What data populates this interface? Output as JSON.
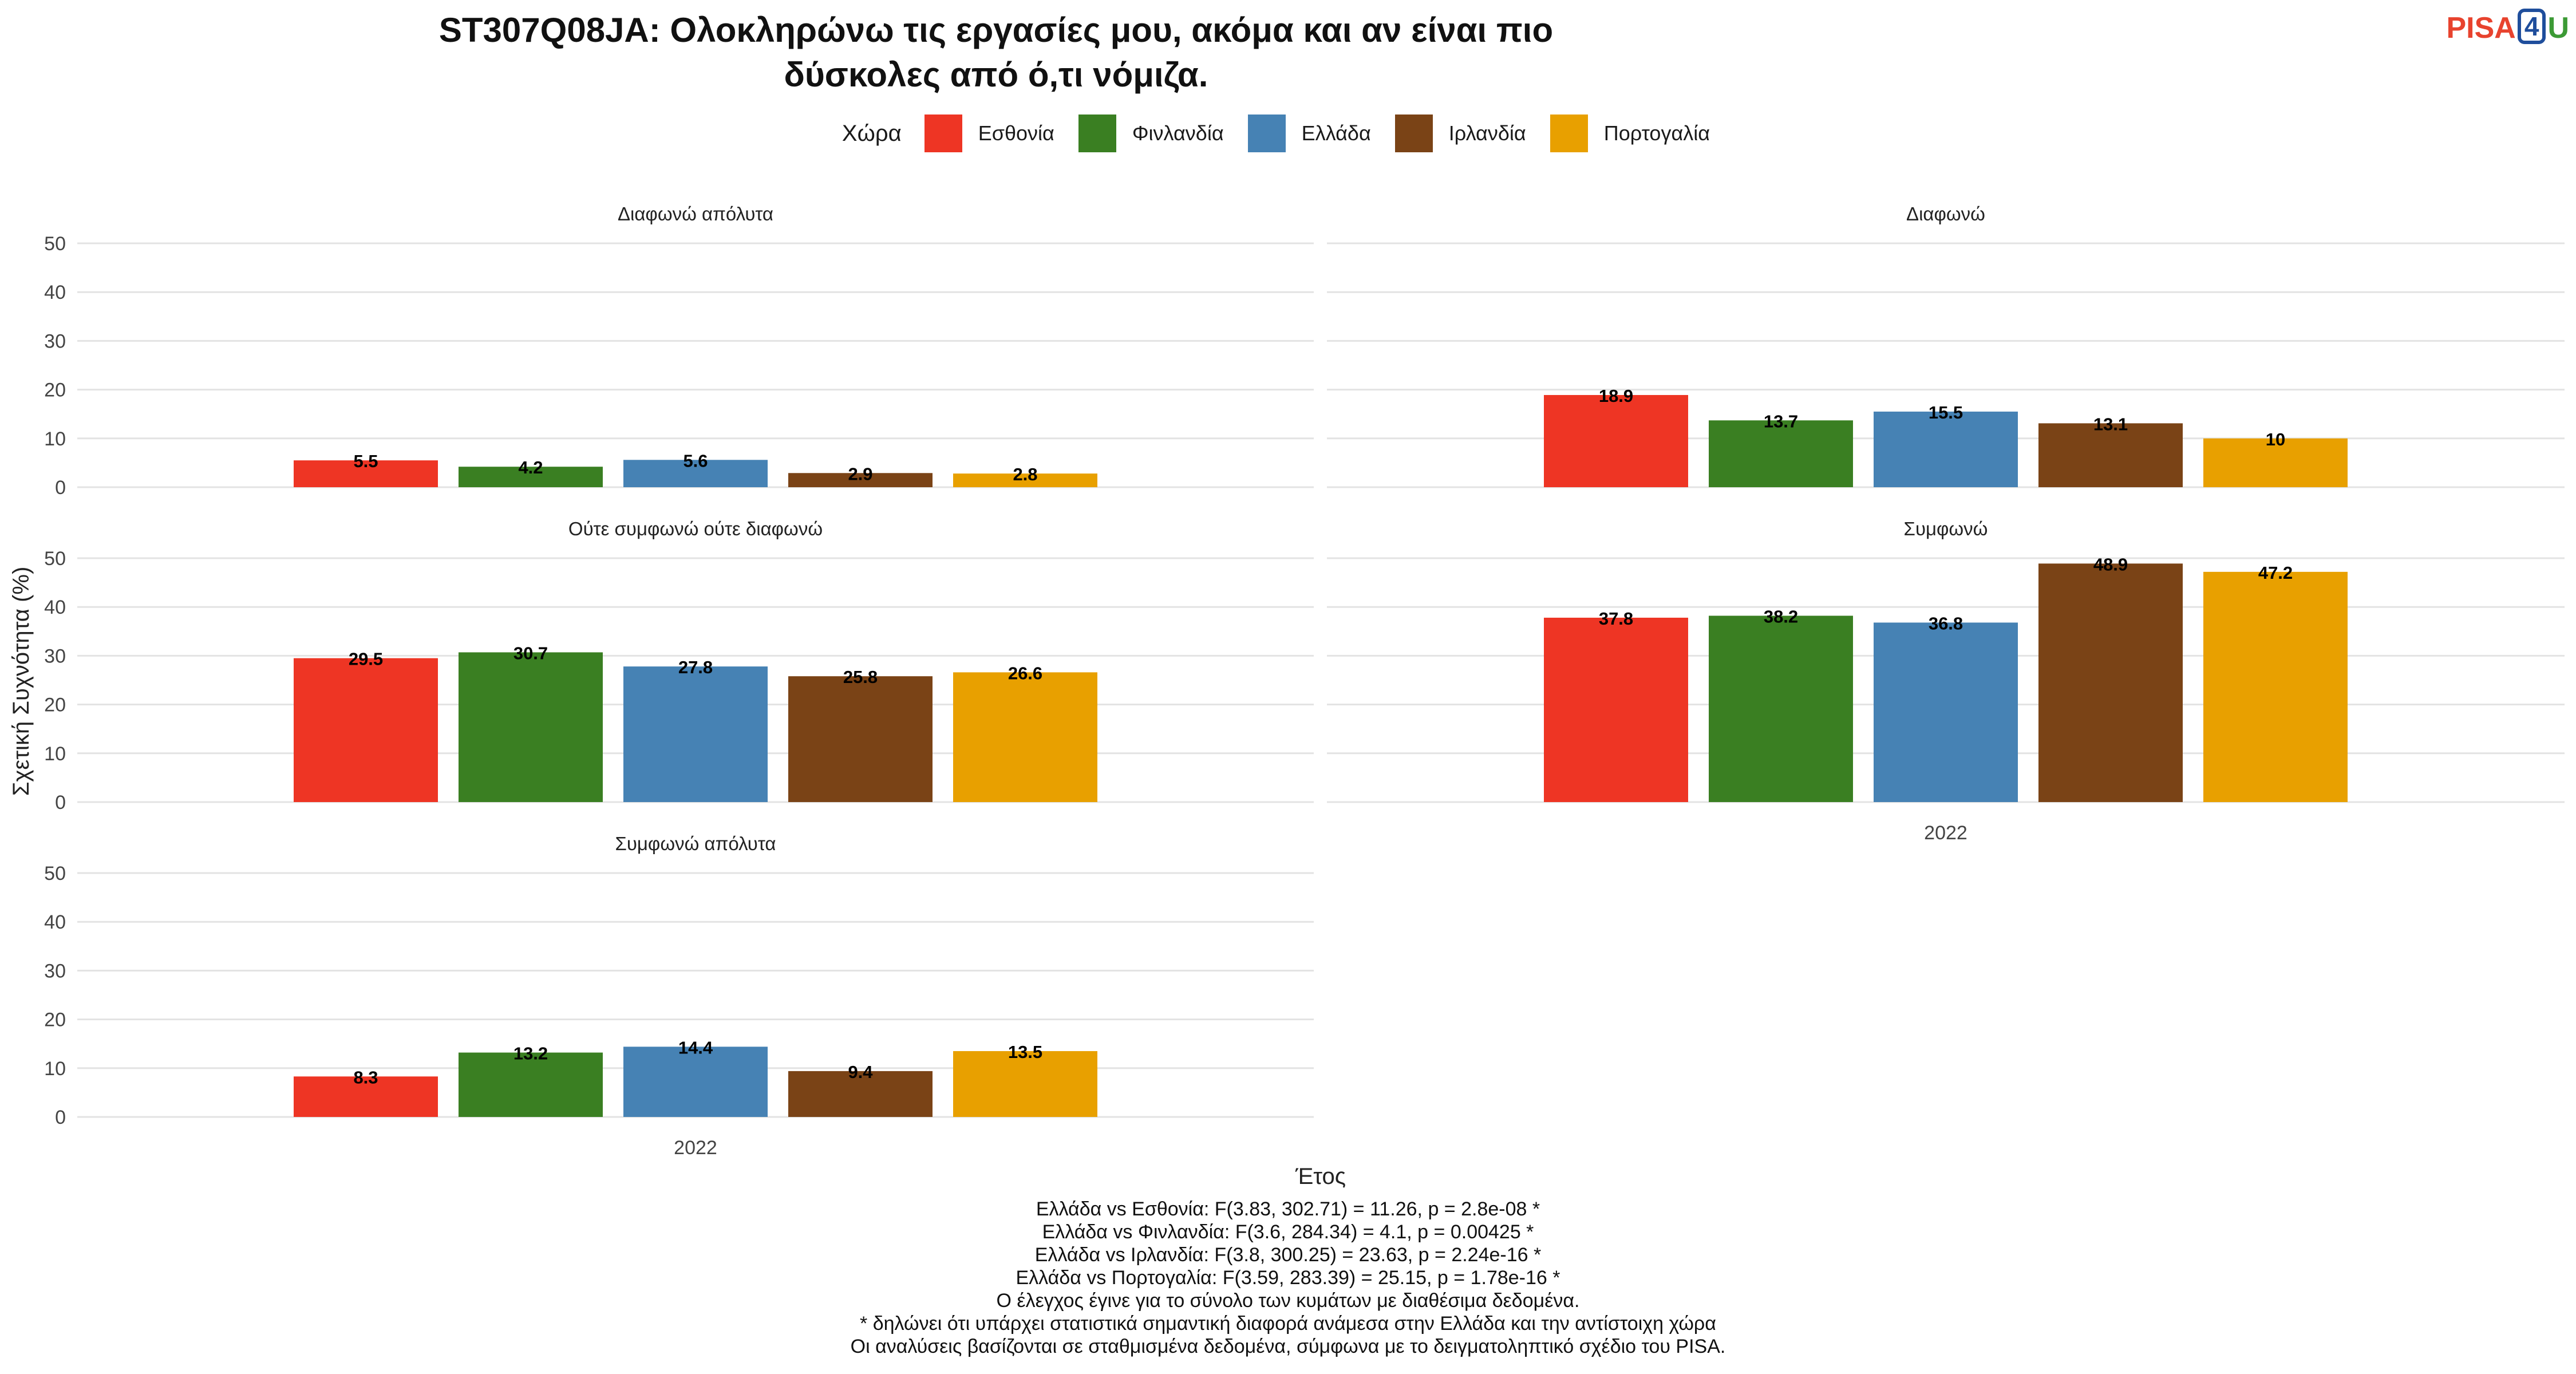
{
  "title_lines": [
    "ST307Q08JA: Ολοκληρώνω τις εργασίες μου, ακόμα και αν είναι πιο",
    "δύσκολες από ό,τι νόμιζα."
  ],
  "logo": {
    "pisa": "PISA",
    "four": "4",
    "u": "U"
  },
  "legend": {
    "title": "Χώρα"
  },
  "colors": {
    "Εσθονία": "#ee3524",
    "Φινλανδία": "#3a7f22",
    "Ελλάδα": "#4682b4",
    "Ιρλανδία": "#7a4316",
    "Πορτογαλία": "#e8a000"
  },
  "chart_data": {
    "type": "bar",
    "ylabel": "Σχετική Συχνότητα (%)",
    "xlabel": "Έτος",
    "x_category": "2022",
    "ylim": [
      0,
      50
    ],
    "yticks": [
      0,
      10,
      20,
      30,
      40,
      50
    ],
    "grid": true,
    "legend_position": "top",
    "series_names": [
      "Εσθονία",
      "Φινλανδία",
      "Ελλάδα",
      "Ιρλανδία",
      "Πορτογαλία"
    ],
    "panels": [
      {
        "label": "Διαφωνώ απόλυτα",
        "values": [
          5.5,
          4.2,
          5.6,
          2.9,
          2.8
        ]
      },
      {
        "label": "Διαφωνώ",
        "values": [
          18.9,
          13.7,
          15.5,
          13.1,
          10
        ]
      },
      {
        "label": "Ούτε συμφωνώ ούτε διαφωνώ",
        "values": [
          29.5,
          30.7,
          27.8,
          25.8,
          26.6
        ]
      },
      {
        "label": "Συμφωνώ",
        "values": [
          37.8,
          38.2,
          36.8,
          48.9,
          47.2
        ]
      },
      {
        "label": "Συμφωνώ απόλυτα",
        "values": [
          8.3,
          13.2,
          14.4,
          9.4,
          13.5
        ]
      }
    ]
  },
  "notes": [
    "Ελλάδα vs Εσθονία: F(3.83, 302.71) = 11.26, p = 2.8e-08 *",
    "Ελλάδα vs Φινλανδία: F(3.6, 284.34) = 4.1, p = 0.00425 *",
    "Ελλάδα vs Ιρλανδία: F(3.8, 300.25) = 23.63, p = 2.24e-16 *",
    "Ελλάδα vs Πορτογαλία: F(3.59, 283.39) = 25.15, p = 1.78e-16 *",
    "Ο έλεγχος έγινε για το σύνολο των κυμάτων με διαθέσιμα δεδομένα.",
    "* δηλώνει ότι υπάρχει στατιστικά σημαντική διαφορά ανάμεσα στην Ελλάδα και την αντίστοιχη χώρα",
    "Οι αναλύσεις βασίζονται σε σταθμισμένα δεδομένα, σύμφωνα με το δειγματοληπτικό σχέδιο του PISA."
  ]
}
